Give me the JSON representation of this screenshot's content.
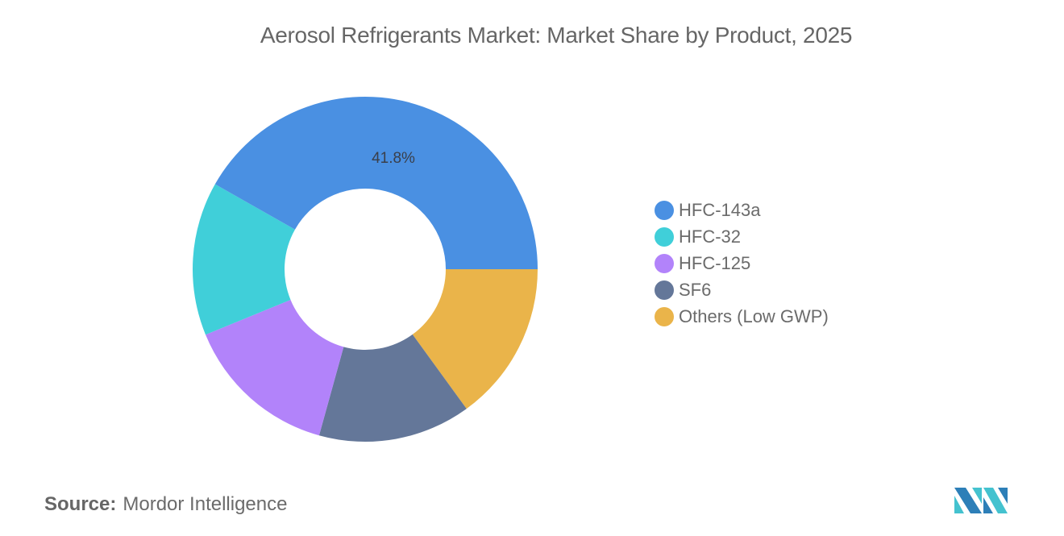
{
  "title": "Aerosol Refrigerants Market: Market Share by Product, 2025",
  "source": {
    "label": "Source:",
    "value": "Mordor Intelligence"
  },
  "legend": [
    {
      "label": "HFC-143a",
      "color": "#4A90E2"
    },
    {
      "label": "HFC-32",
      "color": "#40CFD9"
    },
    {
      "label": "HFC-125",
      "color": "#B283FA"
    },
    {
      "label": "SF6",
      "color": "#647799"
    },
    {
      "label": "Others (Low GWP)",
      "color": "#EAB44A"
    }
  ],
  "slice_label": "41.8%",
  "chart_data": {
    "type": "pie",
    "subtype": "donut",
    "title": "Aerosol Refrigerants Market: Market Share by Product, 2025",
    "categories": [
      "HFC-143a",
      "HFC-32",
      "HFC-125",
      "SF6",
      "Others (Low GWP)"
    ],
    "values": [
      41.8,
      14.4,
      14.5,
      14.3,
      15.0
    ],
    "unit": "%",
    "colors": [
      "#4A90E2",
      "#40CFD9",
      "#B283FA",
      "#647799",
      "#EAB44A"
    ],
    "annotations": [
      {
        "category": "HFC-143a",
        "text": "41.8%"
      }
    ],
    "legend_position": "right",
    "source": "Mordor Intelligence"
  }
}
